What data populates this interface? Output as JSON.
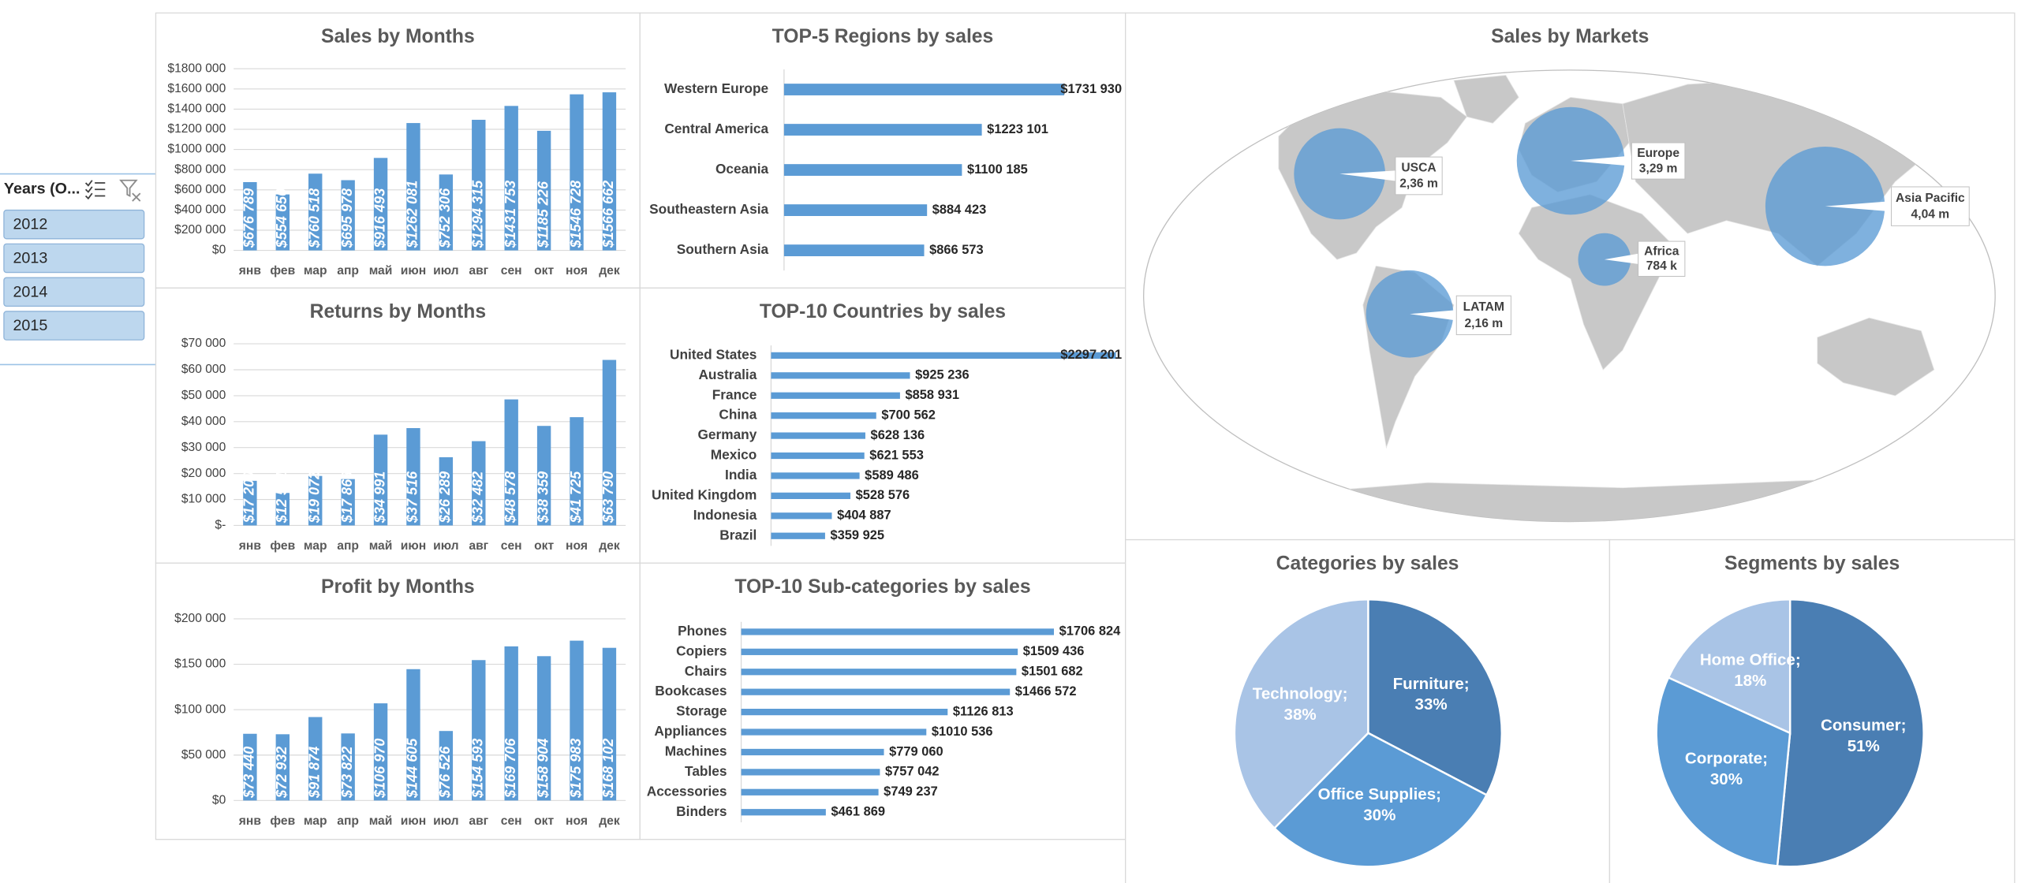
{
  "slicer": {
    "title": "Years (O...",
    "items": [
      "2012",
      "2013",
      "2014",
      "2015"
    ]
  },
  "chart_data": [
    {
      "type": "bar",
      "title": "Sales by Months",
      "categories": [
        "янв",
        "фев",
        "мар",
        "апр",
        "май",
        "июн",
        "июл",
        "авг",
        "сен",
        "окт",
        "ноя",
        "дек"
      ],
      "values": [
        676789,
        554650,
        760518,
        695978,
        916493,
        1262081,
        752306,
        1294315,
        1431753,
        1185226,
        1546728,
        1566662
      ],
      "value_labels": [
        "$676 789",
        "$554 650",
        "$760 518",
        "$695 978",
        "$916 493",
        "$1262 081",
        "$752 306",
        "$1294 315",
        "$1431 753",
        "$1185 226",
        "$1546 728",
        "$1566 662"
      ],
      "color": "#5b9bd5",
      "ylim": [
        0,
        1800000
      ],
      "yticks": [
        {
          "value": 0,
          "label": "$0"
        },
        {
          "value": 200000,
          "label": "$200 000"
        },
        {
          "value": 400000,
          "label": "$400 000"
        },
        {
          "value": 600000,
          "label": "$600 000"
        },
        {
          "value": 800000,
          "label": "$800 000"
        },
        {
          "value": 1000000,
          "label": "$1000 000"
        },
        {
          "value": 1200000,
          "label": "$1200 000"
        },
        {
          "value": 1400000,
          "label": "$1400 000"
        },
        {
          "value": 1600000,
          "label": "$1600 000"
        },
        {
          "value": 1800000,
          "label": "$1800 000"
        }
      ],
      "grid": true
    },
    {
      "type": "bar",
      "title": "Returns by Months",
      "categories": [
        "янв",
        "фев",
        "мар",
        "апр",
        "май",
        "июн",
        "июл",
        "авг",
        "сен",
        "окт",
        "ноя",
        "дек"
      ],
      "values": [
        17200,
        12521,
        19072,
        17868,
        34991,
        37516,
        26289,
        32482,
        48578,
        38359,
        41725,
        63790
      ],
      "value_labels": [
        "$17 200",
        "$12 521",
        "$19 072",
        "$17 868",
        "$34 991",
        "$37 516",
        "$26 289",
        "$32 482",
        "$48 578",
        "$38 359",
        "$41 725",
        "$63 790"
      ],
      "color": "#5b9bd5",
      "ylim": [
        0,
        70000
      ],
      "yticks": [
        {
          "value": 0,
          "label": "$-"
        },
        {
          "value": 10000,
          "label": "$10 000"
        },
        {
          "value": 20000,
          "label": "$20 000"
        },
        {
          "value": 30000,
          "label": "$30 000"
        },
        {
          "value": 40000,
          "label": "$40 000"
        },
        {
          "value": 50000,
          "label": "$50 000"
        },
        {
          "value": 60000,
          "label": "$60 000"
        },
        {
          "value": 70000,
          "label": "$70 000"
        }
      ],
      "grid": true
    },
    {
      "type": "bar",
      "title": "Profit by Months",
      "categories": [
        "янв",
        "фев",
        "мар",
        "апр",
        "май",
        "июн",
        "июл",
        "авг",
        "сен",
        "окт",
        "ноя",
        "дек"
      ],
      "values": [
        73440,
        72932,
        91874,
        73822,
        106970,
        144605,
        76526,
        154593,
        169706,
        158904,
        175983,
        168102
      ],
      "value_labels": [
        "$73 440",
        "$72 932",
        "$91 874",
        "$73 822",
        "$106 970",
        "$144 605",
        "$76 526",
        "$154 593",
        "$169 706",
        "$158 904",
        "$175 983",
        "$168 102"
      ],
      "color": "#5b9bd5",
      "ylim": [
        0,
        200000
      ],
      "yticks": [
        {
          "value": 0,
          "label": "$0"
        },
        {
          "value": 50000,
          "label": "$50 000"
        },
        {
          "value": 100000,
          "label": "$100 000"
        },
        {
          "value": 150000,
          "label": "$150 000"
        },
        {
          "value": 200000,
          "label": "$200 000"
        }
      ],
      "grid": true
    },
    {
      "type": "bar",
      "horizontal": true,
      "title": "TOP-5 Regions by sales",
      "categories": [
        "Western Europe",
        "Central America",
        "Oceania",
        "Southeastern Asia",
        "Southern Asia"
      ],
      "values": [
        1731930,
        1223101,
        1100185,
        884423,
        866573
      ],
      "value_labels": [
        "$1731 930",
        "$1223 101",
        "$1100 185",
        "$884 423",
        "$866 573"
      ],
      "color": "#5b9bd5",
      "xlim": [
        0,
        1750000
      ]
    },
    {
      "type": "bar",
      "horizontal": true,
      "title": "TOP-10 Countries by sales",
      "categories": [
        "United States",
        "Australia",
        "France",
        "China",
        "Germany",
        "Mexico",
        "India",
        "United Kingdom",
        "Indonesia",
        "Brazil"
      ],
      "values": [
        2297201,
        925236,
        858931,
        700562,
        628136,
        621553,
        589486,
        528576,
        404887,
        359925
      ],
      "value_labels": [
        "$2297 201",
        "$925 236",
        "$858 931",
        "$700 562",
        "$628 136",
        "$621 553",
        "$589 486",
        "$528 576",
        "$404 887",
        "$359 925"
      ],
      "color": "#5b9bd5",
      "xlim": [
        0,
        2300000
      ]
    },
    {
      "type": "bar",
      "horizontal": true,
      "title": "TOP-10 Sub-categories by sales",
      "categories": [
        "Phones",
        "Copiers",
        "Chairs",
        "Bookcases",
        "Storage",
        "Appliances",
        "Machines",
        "Tables",
        "Accessories",
        "Binders"
      ],
      "values": [
        1706824,
        1509436,
        1501682,
        1466572,
        1126813,
        1010536,
        779060,
        757042,
        749237,
        461869
      ],
      "value_labels": [
        "$1706 824",
        "$1509 436",
        "$1501 682",
        "$1466 572",
        "$1126 813",
        "$1010 536",
        "$779 060",
        "$757 042",
        "$749 237",
        "$461 869"
      ],
      "color": "#5b9bd5",
      "xlim": [
        0,
        1750000
      ]
    },
    {
      "type": "bubble-map",
      "title": "Sales by Markets",
      "categories": [
        "USCA",
        "Europe",
        "Asia Pacific",
        "Africa",
        "LATAM"
      ],
      "values": [
        2.36,
        3.29,
        4.04,
        0.784,
        2.16
      ],
      "value_labels": [
        "2,36 m",
        "3,29 m",
        "4,04 m",
        "784 k",
        "2,16 m"
      ],
      "color": "#5b9bd5"
    },
    {
      "type": "pie",
      "title": "Categories by sales",
      "categories": [
        "Furniture;",
        "Office Supplies;",
        "Technology;"
      ],
      "values": [
        33,
        30,
        38
      ],
      "value_labels": [
        "33%",
        "30%",
        "38%"
      ],
      "colors": [
        "#4a7eb3",
        "#5b9bd5",
        "#a9c4e6"
      ]
    },
    {
      "type": "pie",
      "title": "Segments by sales",
      "categories": [
        "Consumer;",
        "Corporate;",
        "Home Office;"
      ],
      "values": [
        51,
        30,
        18
      ],
      "value_labels": [
        "51%",
        "30%",
        "18%"
      ],
      "colors": [
        "#4a7eb3",
        "#5b9bd5",
        "#a9c4e6"
      ]
    }
  ]
}
